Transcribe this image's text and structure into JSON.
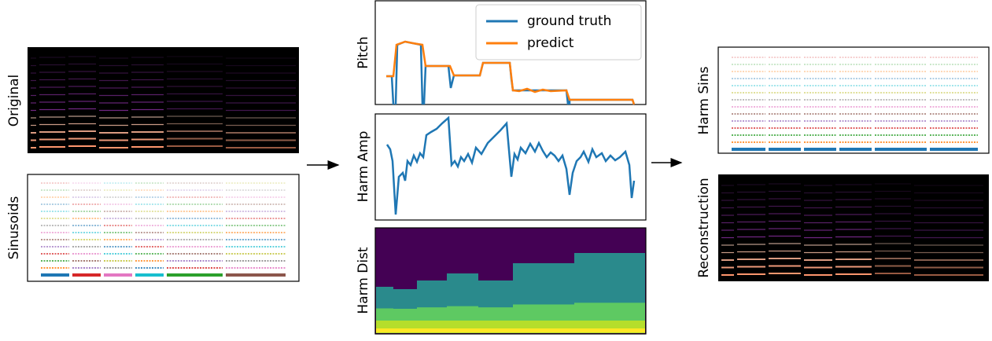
{
  "left": {
    "original": "Original",
    "sinusoids": "Sinusoids"
  },
  "middle": {
    "pitch": "Pitch",
    "harm_amp": "Harm Amp",
    "harm_dist": "Harm Dist",
    "legend": [
      "ground truth",
      "predict"
    ]
  },
  "right": {
    "harm_sins": "Harm Sins",
    "reconstruction": "Reconstruction"
  }
}
